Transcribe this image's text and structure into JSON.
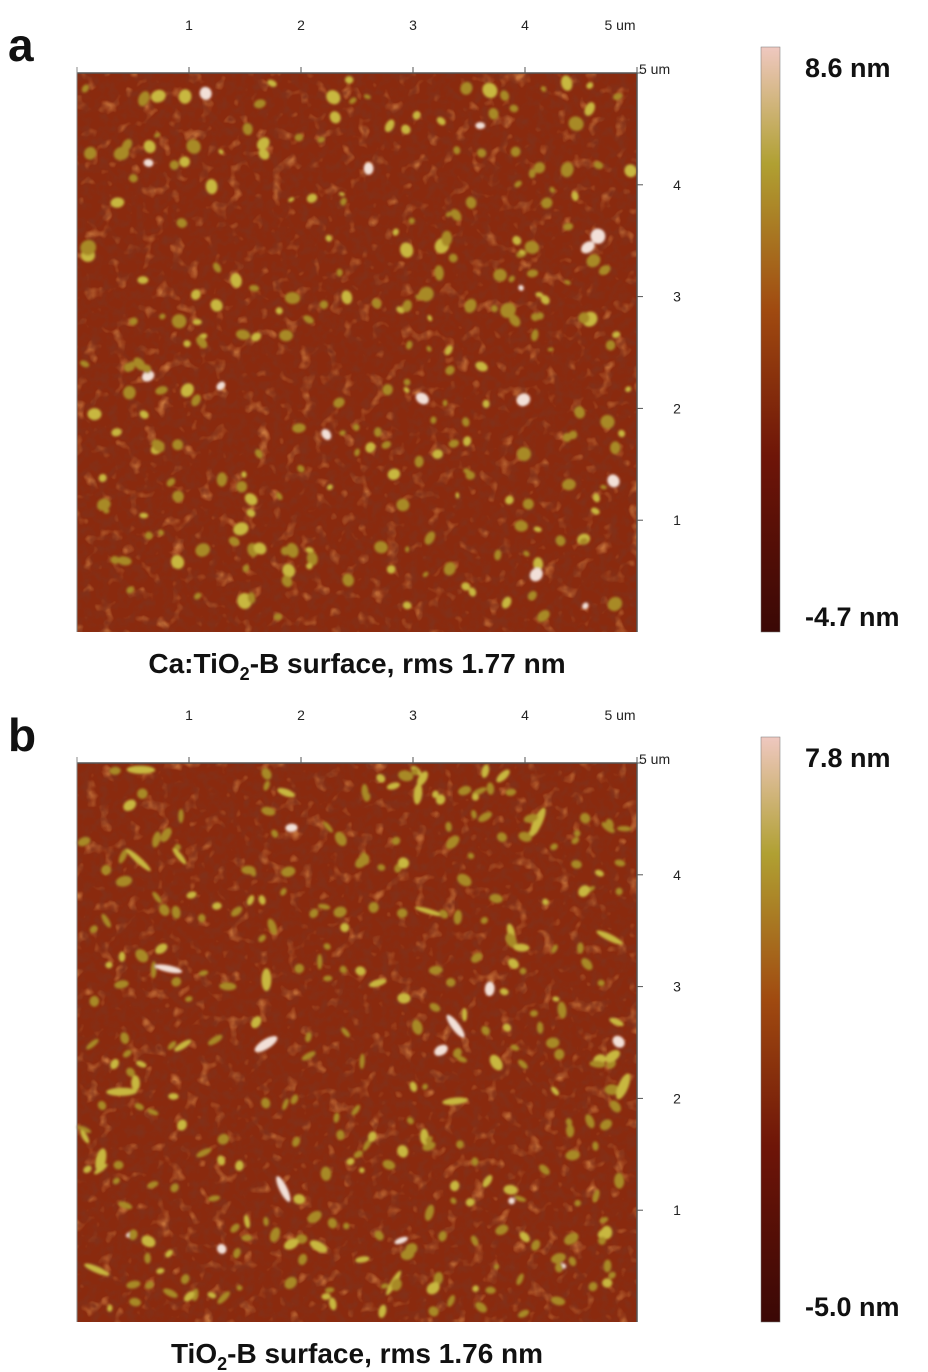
{
  "panels": [
    {
      "label": "a",
      "top_ticks": [
        "1",
        "2",
        "3",
        "4",
        "5 um"
      ],
      "right_ticks": [
        "5 um",
        "4",
        "3",
        "2",
        "1"
      ],
      "colorbar": {
        "max": "8.6 nm",
        "min": "-4.7 nm"
      },
      "caption": {
        "prefix": "Ca:TiO",
        "subscript": "2",
        "suffix": "-B surface, rms 1.77 nm"
      }
    },
    {
      "label": "b",
      "top_ticks": [
        "1",
        "2",
        "3",
        "4",
        "5 um"
      ],
      "right_ticks": [
        "5 um",
        "4",
        "3",
        "2",
        "1"
      ],
      "colorbar": {
        "max": "7.8 nm",
        "min": "-5.0 nm"
      },
      "caption": {
        "prefix": "TiO",
        "subscript": "2",
        "suffix": "-B surface, rms 1.76 nm"
      }
    }
  ]
}
